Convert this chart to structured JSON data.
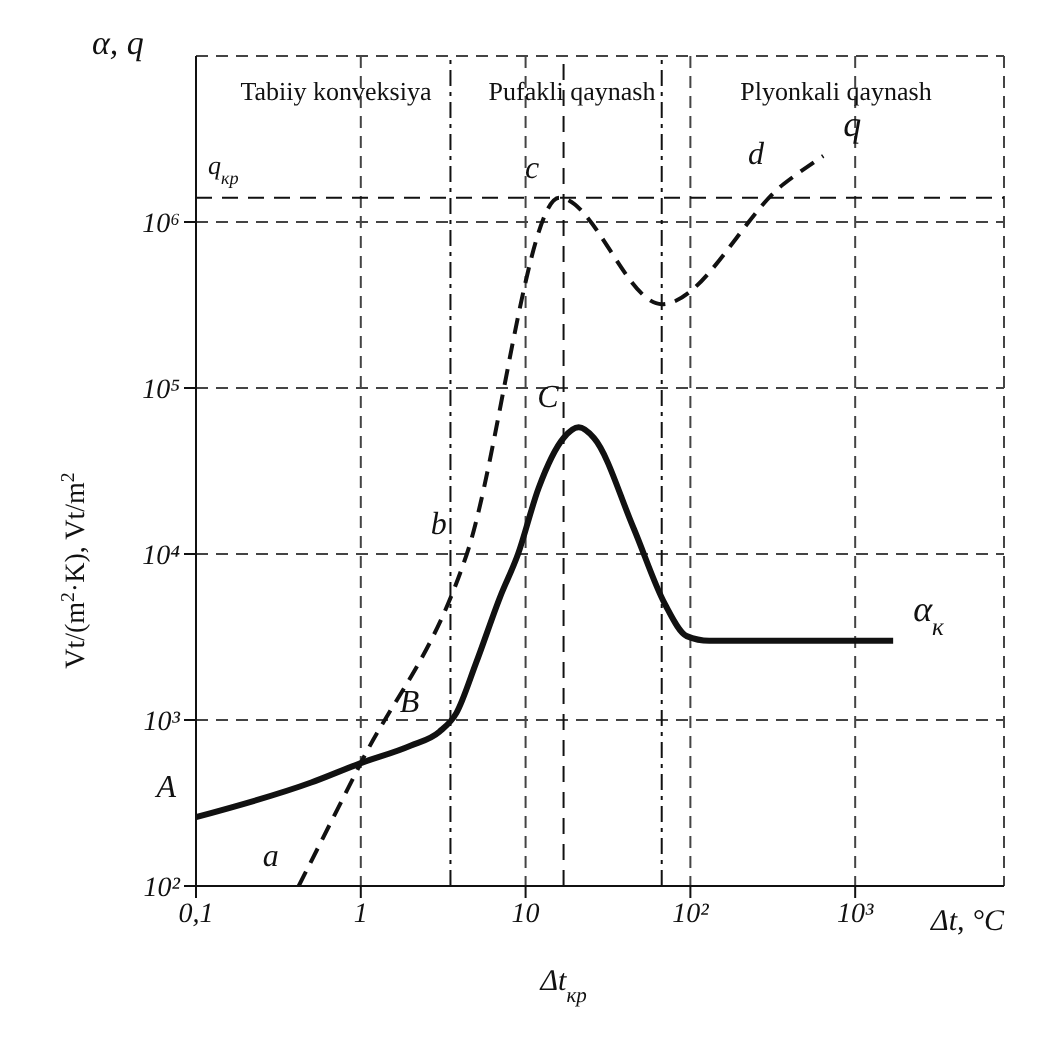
{
  "chart_data": {
    "type": "line",
    "xlabel": "Δt, °C",
    "ylabel": "Vt/(m$^{2}$·K), Vt/m$^{2}$",
    "log": "xy",
    "grid": true,
    "marker": "none",
    "xlim": [
      0.1,
      8000
    ],
    "xticks": [
      {
        "value": 0.1,
        "label": "0,1"
      },
      1,
      10,
      {
        "value": 100,
        "label": "10²"
      },
      {
        "value": 1000,
        "label": "10³"
      }
    ],
    "ylim": [
      100,
      10000000
    ],
    "yticks": [
      {
        "value": 100,
        "label": "10²"
      },
      {
        "value": 1000,
        "label": "10³"
      },
      {
        "value": 10000,
        "label": "10⁴"
      },
      {
        "value": 100000,
        "label": "10⁵"
      },
      {
        "value": 1000000,
        "label": "10⁶"
      }
    ],
    "series": [
      {
        "name": "α$_{к}$",
        "color": "#111111",
        "line_style": "solid",
        "x": [
          0.1,
          0.5,
          1,
          2,
          3,
          3.8,
          5,
          7,
          9,
          12,
          17,
          21,
          26,
          45,
          70,
          95,
          130,
          1700
        ],
        "values": [
          260,
          420,
          550,
          700,
          850,
          1100,
          2200,
          5500,
          10000,
          25000,
          50000,
          58000,
          50000,
          14500,
          5000,
          3200,
          3000,
          3000
        ]
      },
      {
        "name": "q",
        "color": "#111111",
        "line_style": "dashed",
        "x": [
          0.42,
          1,
          4.4,
          16,
          67,
          370,
          640
        ],
        "values": [
          100,
          550,
          10000,
          1400000,
          320000,
          1700000,
          2500000
        ]
      }
    ],
    "ref_lines": [
      {
        "axis": "y",
        "value": 1400000,
        "label": "q$_{кр}$",
        "line_style": "dashed"
      },
      {
        "axis": "x",
        "value": 17,
        "label": "Δt$_{кр}$",
        "line_style": "dashed"
      },
      {
        "axis": "x",
        "value": 3.5,
        "line_style": "dashdot"
      },
      {
        "axis": "x",
        "value": 67,
        "line_style": "dashdot"
      }
    ],
    "annotations": [
      "α, q",
      "Tabiiy konveksiya",
      "Pufakli qaynash",
      "Plyonkali qaynash",
      {
        "text": "A",
        "x": 0.1,
        "y": 260
      },
      {
        "text": "B",
        "x": 3,
        "y": 850
      },
      {
        "text": "a",
        "x": 0.42,
        "y": 100
      },
      {
        "text": "b",
        "x": 4.4,
        "y": 10000
      },
      {
        "text": "C",
        "x": 21,
        "y": 58000
      },
      {
        "text": "c",
        "x": 16,
        "y": 1400000
      },
      {
        "text": "d",
        "x": 370,
        "y": 1700000
      }
    ]
  }
}
